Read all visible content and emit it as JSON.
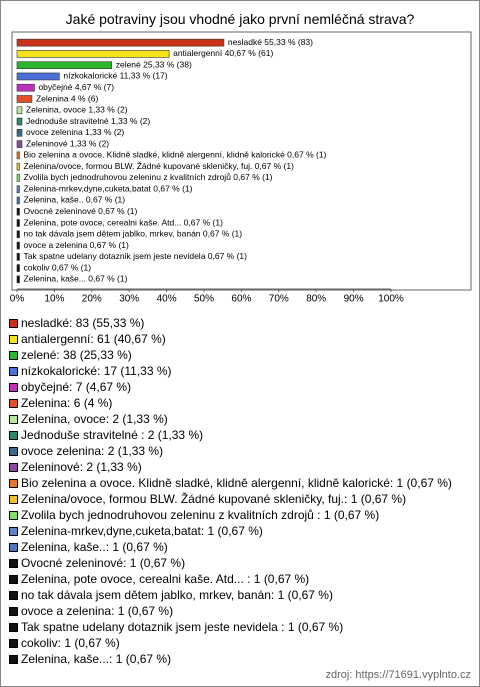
{
  "chart_data": {
    "type": "bar",
    "orientation": "horizontal",
    "title": "Jaké potraviny jsou vhodné jako první nemléčná strava?",
    "values": [
      55.33,
      40.67,
      25.33,
      11.33,
      4.67,
      4,
      1.33,
      1.33,
      1.33,
      1.33,
      0.67,
      0.67,
      0.67,
      0.67,
      0.67,
      0.67,
      0.67,
      0.67,
      0.67,
      0.67,
      0.67,
      0.67
    ],
    "value_labels": [
      "nesladké 55,33 % (83)",
      "antialergenní 40,67 % (61)",
      "zelené 25,33 % (38)",
      "nízkokalorické 11,33 % (17)",
      "obyčejné 4,67 % (7)",
      "Zelenina 4 % (6)",
      "Zelenina, ovoce 1,33 % (2)",
      "Jednoduše stravitelné  1,33 % (2)",
      "ovoce zelenina 1,33 % (2)",
      "Zeleninové 1,33 % (2)",
      "Bio zelenina a ovoce. Klidně sladké, klidně alergenní, klidně kalorické 0,67 % (1)",
      "Zelenina/ovoce, formou BLW. Žádné kupované skleničky, fuj. 0,67 % (1)",
      "Zvolila bych jednodruhovou zeleninu z kvalitních zdrojů  0,67 % (1)",
      "Zelenina-mrkev,dyne,cuketa,batat 0,67 % (1)",
      "Zelenina, kaše.. 0,67 % (1)",
      "Ovocné zeleninové 0,67 % (1)",
      "Zelenina, pote ovoce, cerealni kaše. Atd...  0,67 % (1)",
      "no tak dávala jsem dětem jablko, mrkev, banán 0,67 % (1)",
      "ovoce a zelenina 0,67 % (1)",
      "Tak spatne udelany dotaznik jsem jeste nevidela  0,67 % (1)",
      "cokoliv 0,67 % (1)",
      "Zelenina, kaše... 0,67 % (1)"
    ],
    "legend_labels": [
      "nesladké: 83 (55,33 %)",
      "antialergenní: 61 (40,67 %)",
      "zelené: 38 (25,33 %)",
      "nízkokalorické: 17 (11,33 %)",
      "obyčejné: 7 (4,67 %)",
      "Zelenina: 6 (4 %)",
      "Zelenina, ovoce: 2 (1,33 %)",
      "Jednoduše stravitelné : 2 (1,33 %)",
      "ovoce zelenina: 2 (1,33 %)",
      "Zeleninové: 2 (1,33 %)",
      "Bio zelenina a ovoce. Klidně sladké, klidně alergenní, klidně kalorické: 1 (0,67 %)",
      "Zelenina/ovoce, formou BLW. Žádné kupované skleničky, fuj.: 1 (0,67 %)",
      "Zvolila bych jednodruhovou zeleninu z kvalitních zdrojů : 1 (0,67 %)",
      "Zelenina-mrkev,dyne,cuketa,batat: 1 (0,67 %)",
      "Zelenina, kaše..: 1 (0,67 %)",
      "Ovocné zeleninové: 1 (0,67 %)",
      "Zelenina, pote ovoce, cerealni kaše. Atd... : 1 (0,67 %)",
      "no tak dávala jsem dětem jablko, mrkev, banán: 1 (0,67 %)",
      "ovoce a zelenina: 1 (0,67 %)",
      "Tak spatne udelany dotaznik jsem jeste nevidela : 1 (0,67 %)",
      "cokoliv: 1 (0,67 %)",
      "Zelenina, kaše...: 1 (0,67 %)"
    ],
    "colors": [
      "#c8311a",
      "#f5e31a",
      "#2db52d",
      "#4b6fd6",
      "#c030c0",
      "#e0502a",
      "#b6e89a",
      "#2a8a6a",
      "#3a6a8a",
      "#8a4aa0",
      "#e07a30",
      "#f0c030",
      "#80e060",
      "#6080d0",
      "#5070c0",
      "#111111",
      "#111111",
      "#111111",
      "#111111",
      "#111111",
      "#111111",
      "#111111"
    ],
    "xlim": [
      0,
      100
    ],
    "xticks": [
      {
        "value": 0,
        "label": "0%"
      },
      {
        "value": 10,
        "label": "10%"
      },
      {
        "value": 20,
        "label": "20%"
      },
      {
        "value": 30,
        "label": "30%"
      },
      {
        "value": 40,
        "label": "40%"
      },
      {
        "value": 50,
        "label": "50%"
      },
      {
        "value": 60,
        "label": "60%"
      },
      {
        "value": 70,
        "label": "70%"
      },
      {
        "value": 80,
        "label": "80%"
      },
      {
        "value": 90,
        "label": "90%"
      },
      {
        "value": 100,
        "label": "100%"
      }
    ],
    "source": "zdroj: https://71691.vyplnto.cz"
  }
}
